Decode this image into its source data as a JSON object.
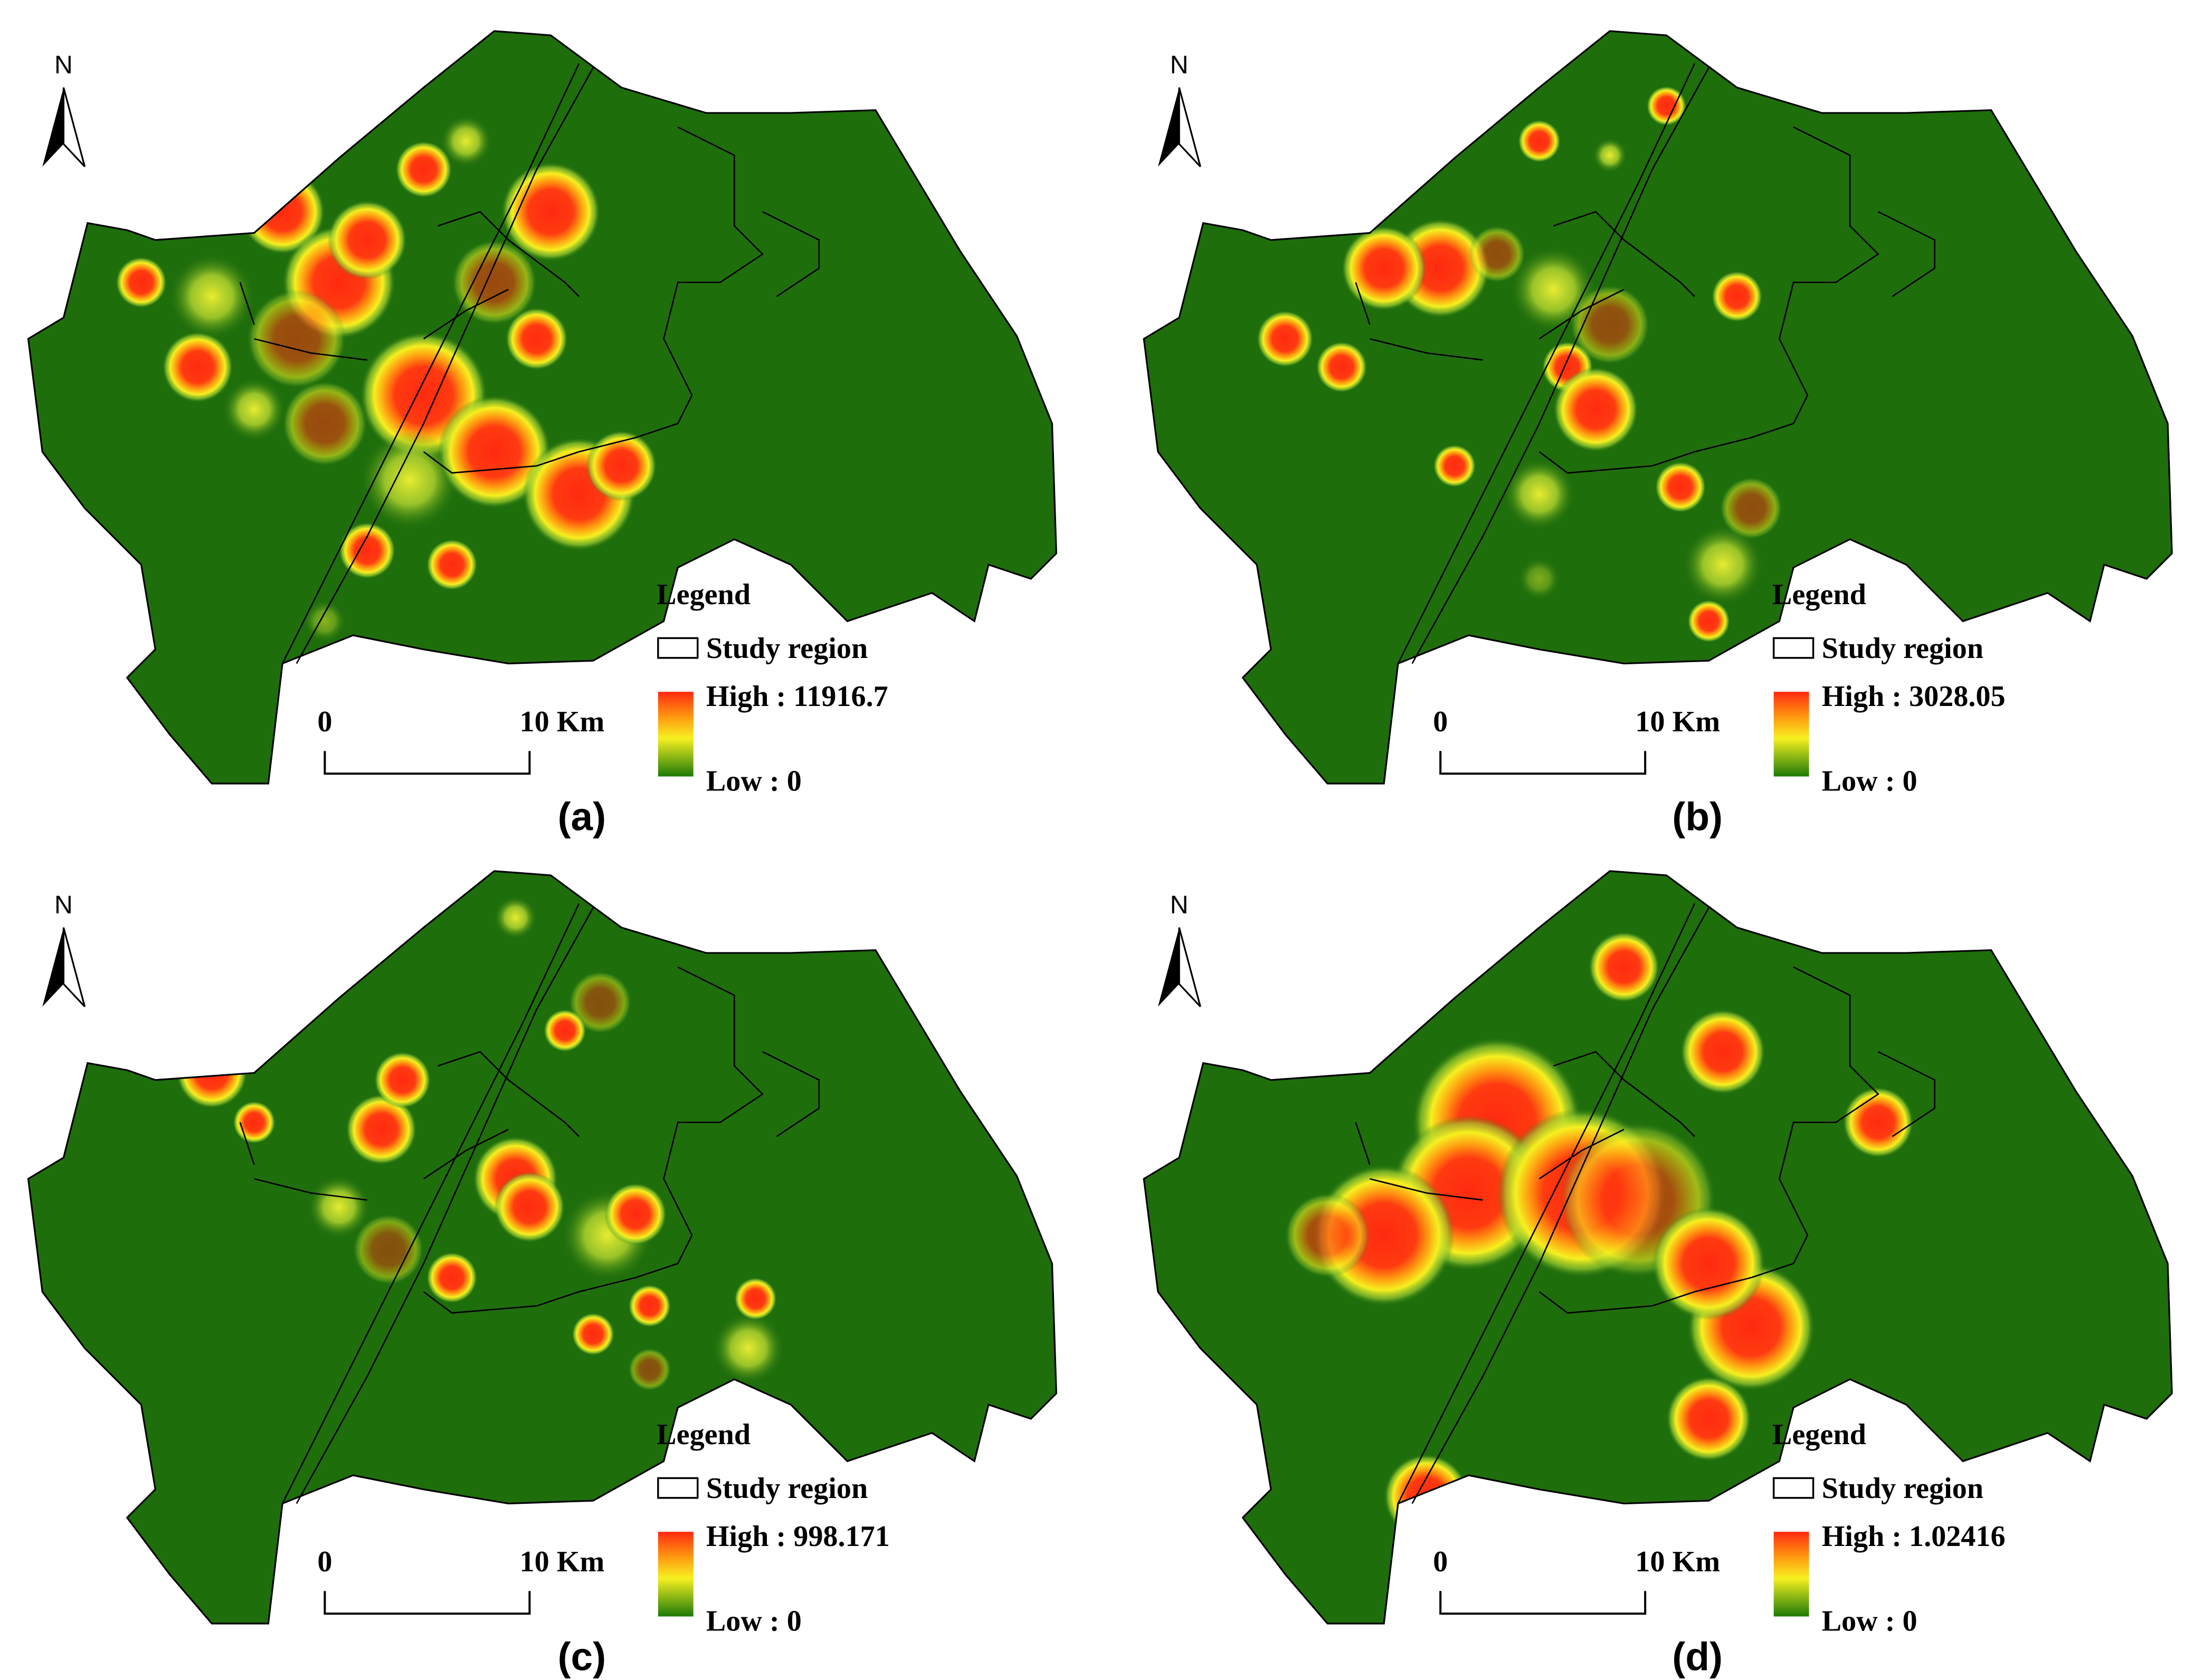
{
  "panels": [
    {
      "label": "(a)",
      "north": "N",
      "scale": {
        "start": "0",
        "end": "10 Km"
      },
      "legend": {
        "title": "Legend",
        "region": "Study region",
        "high": "High : 11916.7",
        "low": "Low : 0"
      }
    },
    {
      "label": "(b)",
      "north": "N",
      "scale": {
        "start": "0",
        "end": "10 Km"
      },
      "legend": {
        "title": "Legend",
        "region": "Study region",
        "high": "High : 3028.05",
        "low": "Low : 0"
      }
    },
    {
      "label": "(c)",
      "north": "N",
      "scale": {
        "start": "0",
        "end": "10 Km"
      },
      "legend": {
        "title": "Legend",
        "region": "Study region",
        "high": "High : 998.171",
        "low": "Low : 0"
      }
    },
    {
      "label": "(d)",
      "north": "N",
      "scale": {
        "start": "0",
        "end": "10 Km"
      },
      "legend": {
        "title": "Legend",
        "region": "Study region",
        "high": "High : 1.02416",
        "low": "Low : 0"
      }
    }
  ]
}
